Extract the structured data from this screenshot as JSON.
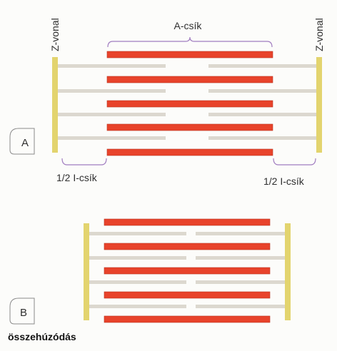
{
  "labels": {
    "z_line_left": "Z-vonal",
    "z_line_right": "Z-vonal",
    "a_band": "A-csík",
    "half_i_band_left": "1/2 I-csík",
    "half_i_band_right": "1/2 I-csík",
    "panel_a": "A",
    "panel_b": "B",
    "caption": "összehúzódás"
  },
  "colors": {
    "thick_filament": "#e8432b",
    "thick_filament_edge": "#b8321e",
    "thin_filament": "#dcd8cf",
    "z_line": "#e3d46e",
    "bracket": "#a07cc0",
    "panel_box": "#8a8a8a"
  }
}
